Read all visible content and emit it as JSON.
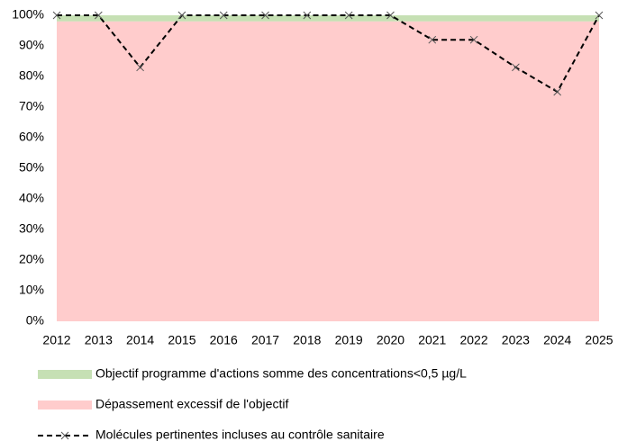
{
  "chart_data": {
    "type": "area_line",
    "categories": [
      "2012",
      "2013",
      "2014",
      "2015",
      "2016",
      "2017",
      "2018",
      "2019",
      "2020",
      "2021",
      "2022",
      "2023",
      "2024",
      "2025"
    ],
    "series": [
      {
        "name": "Objectif programme d'actions somme des concentrations<0,5 µg/L",
        "color": "#c6e0b4",
        "kind": "area",
        "values": [
          2,
          2,
          2,
          2,
          2,
          2,
          2,
          2,
          2,
          2,
          2,
          2,
          2,
          2
        ]
      },
      {
        "name": "Dépassement excessif de l'objectif",
        "color": "#ffcccc",
        "kind": "area",
        "values": [
          98,
          98,
          98,
          98,
          98,
          98,
          98,
          98,
          98,
          98,
          98,
          98,
          98,
          98
        ]
      },
      {
        "name": "Molécules pertinentes incluses au contrôle sanitaire",
        "color": "#000000",
        "kind": "line",
        "values": [
          100,
          100,
          83,
          100,
          100,
          100,
          100,
          100,
          100,
          92,
          92,
          83,
          75,
          100
        ]
      }
    ],
    "ylim": [
      0,
      100
    ],
    "yticks": [
      {
        "value": 0,
        "label": "0%"
      },
      {
        "value": 10,
        "label": "10%"
      },
      {
        "value": 20,
        "label": "20%"
      },
      {
        "value": 30,
        "label": "30%"
      },
      {
        "value": 40,
        "label": "40%"
      },
      {
        "value": 50,
        "label": "50%"
      },
      {
        "value": 60,
        "label": "60%"
      },
      {
        "value": 70,
        "label": "70%"
      },
      {
        "value": 80,
        "label": "80%"
      },
      {
        "value": 90,
        "label": "90%"
      },
      {
        "value": 100,
        "label": "100%"
      }
    ],
    "grid": false
  }
}
